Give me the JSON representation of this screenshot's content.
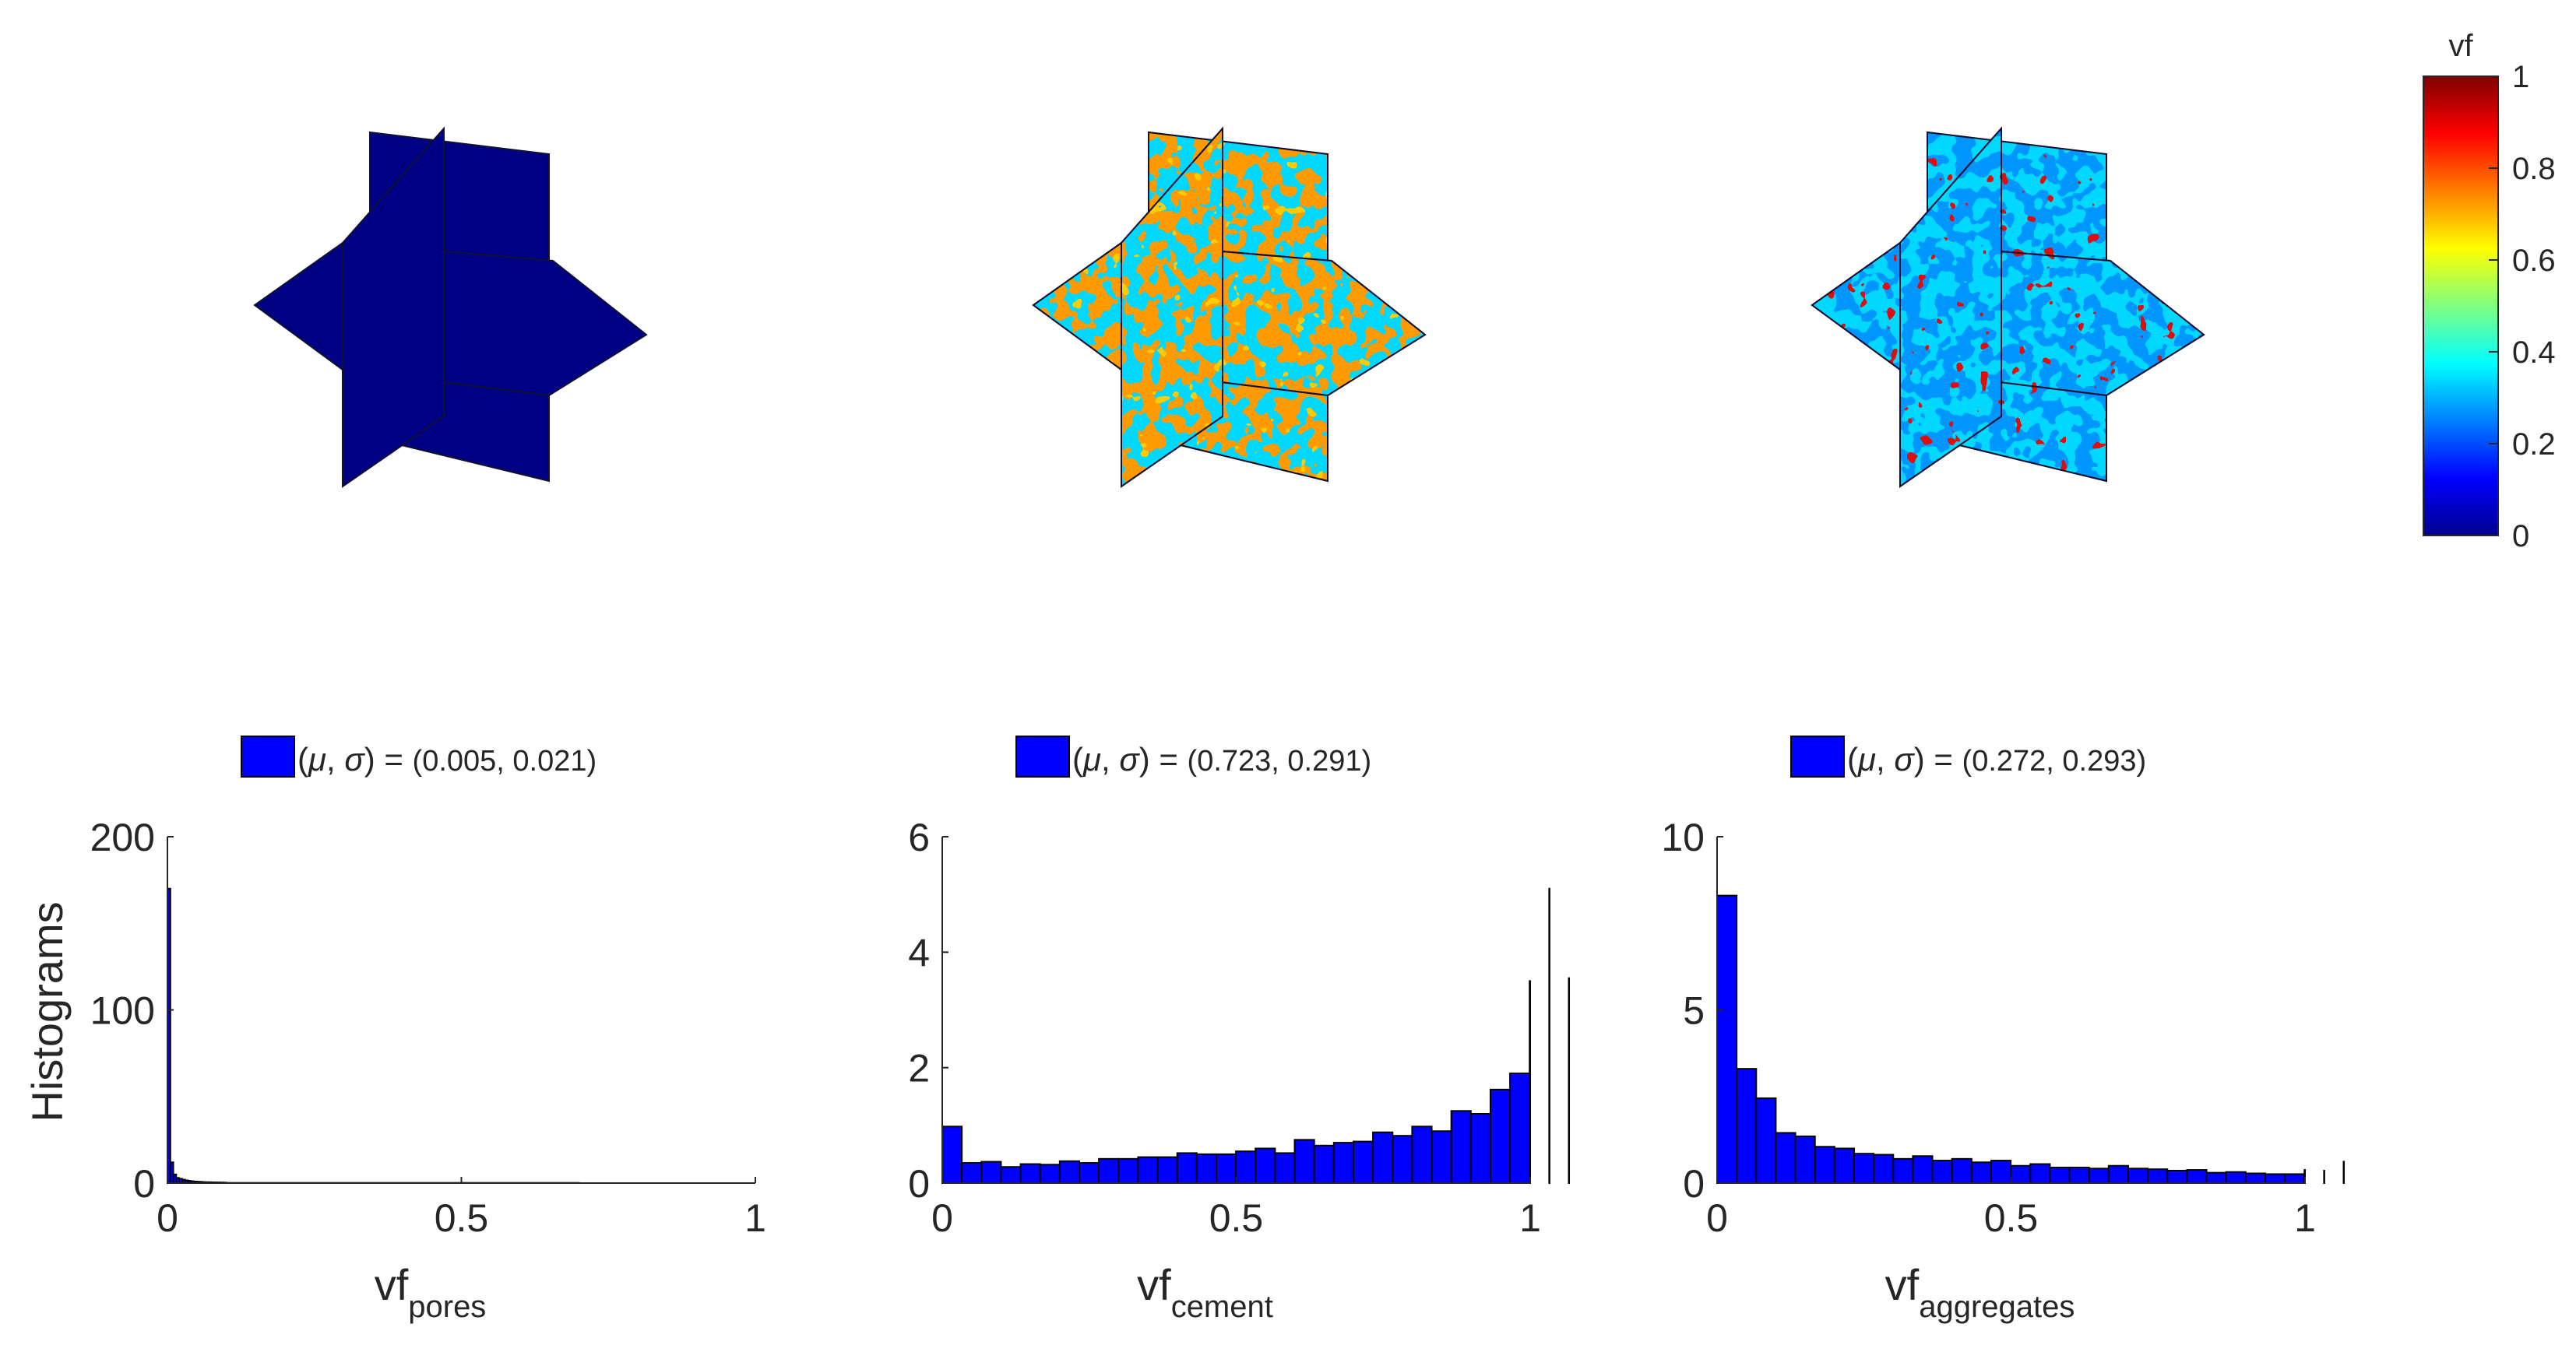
{
  "colors": {
    "bar": "#0000ff",
    "bar_edge": "#000000",
    "axis": "#262626",
    "low_field": "#0a0aa8"
  },
  "colorbar": {
    "title": "vf",
    "colormap": "jet",
    "range": [
      0,
      1
    ],
    "ticks": [
      "0",
      "0.2",
      "0.4",
      "0.6",
      "0.8",
      "1"
    ]
  },
  "ylabel": "Histograms",
  "chart_data": [
    {
      "type": "bar",
      "xlabel": "vf",
      "xlabel_sub": "pores",
      "legend": {
        "prefix": "(",
        "mu": "μ",
        "sep": ", ",
        "sigma": "σ",
        "suffix": ") = ",
        "value": "(0.005, 0.021)"
      },
      "xlim": [
        0,
        1
      ],
      "ylim": [
        0,
        200
      ],
      "xticks": [
        "0",
        "0.5",
        "1"
      ],
      "yticks": [
        "0",
        "100",
        "200"
      ],
      "bin_width": 0.005,
      "values": [
        170,
        12,
        5,
        3,
        2.5,
        2,
        1.6,
        1.3,
        1.1,
        0.9,
        0.8,
        0.7,
        0.6,
        0.5,
        0.5,
        0.45,
        0.4,
        0.4,
        0.35,
        0.3
      ],
      "tail_value": 0.15,
      "tail_end": 0.7,
      "field_mean": 0.005
    },
    {
      "type": "bar",
      "xlabel": "vf",
      "xlabel_sub": "cement",
      "legend": {
        "prefix": "(",
        "mu": "μ",
        "sep": ", ",
        "sigma": "σ",
        "suffix": ") = ",
        "value": "(0.723, 0.291)"
      },
      "xlim": [
        0,
        1
      ],
      "ylim": [
        0,
        6
      ],
      "xticks": [
        "0",
        "0.5",
        "1"
      ],
      "yticks": [
        "0",
        "2",
        "4",
        "6"
      ],
      "bin_width": 0.0333,
      "values": [
        0.98,
        0.35,
        0.37,
        0.28,
        0.33,
        0.32,
        0.38,
        0.35,
        0.42,
        0.42,
        0.45,
        0.45,
        0.52,
        0.5,
        0.5,
        0.55,
        0.6,
        0.52,
        0.75,
        0.65,
        0.7,
        0.72,
        0.88,
        0.82,
        0.98,
        0.9,
        1.25,
        1.2,
        1.62,
        1.9,
        3.5,
        5.1,
        3.55
      ],
      "field_mean": 0.723
    },
    {
      "type": "bar",
      "xlabel": "vf",
      "xlabel_sub": "aggregates",
      "legend": {
        "prefix": "(",
        "mu": "μ",
        "sep": ", ",
        "sigma": "σ",
        "suffix": ") = ",
        "value": "(0.272, 0.293)"
      },
      "xlim": [
        0,
        1
      ],
      "ylim": [
        0,
        10
      ],
      "xticks": [
        "0",
        "0.5",
        "1"
      ],
      "yticks": [
        "0",
        "5",
        "10"
      ],
      "bin_width": 0.0333,
      "values": [
        8.3,
        3.3,
        2.45,
        1.45,
        1.35,
        1.05,
        1.0,
        0.85,
        0.82,
        0.7,
        0.78,
        0.65,
        0.7,
        0.6,
        0.65,
        0.5,
        0.55,
        0.45,
        0.45,
        0.42,
        0.5,
        0.42,
        0.4,
        0.36,
        0.38,
        0.3,
        0.32,
        0.28,
        0.26,
        0.26,
        0.38,
        0.36,
        0.62
      ],
      "field_mean": 0.272
    }
  ]
}
